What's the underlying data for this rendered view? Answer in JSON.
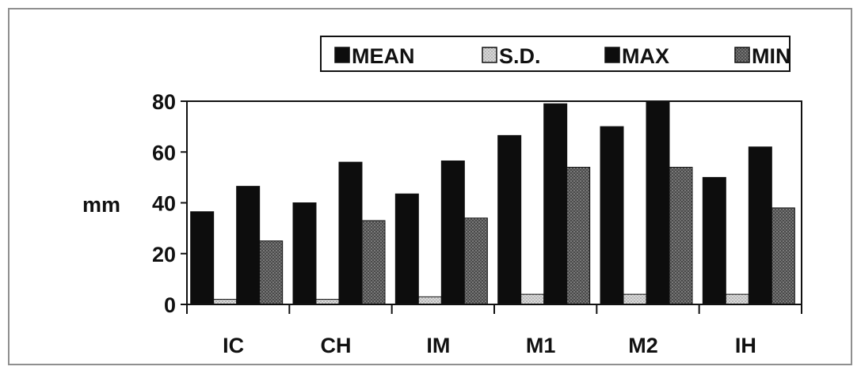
{
  "chart_data": {
    "type": "bar",
    "title": "",
    "xlabel": "",
    "ylabel": "mm",
    "ylim": [
      0,
      80
    ],
    "yticks": [
      0,
      20,
      40,
      60,
      80
    ],
    "grid": false,
    "legend_position": "top-right",
    "categories": [
      "IC",
      "CH",
      "IM",
      "M1",
      "M2",
      "IH"
    ],
    "series": [
      {
        "name": "MEAN",
        "values": [
          36.5,
          40,
          43.5,
          66.5,
          70,
          50
        ],
        "color": "#0d0d0d",
        "pattern": "solid"
      },
      {
        "name": "S.D.",
        "values": [
          2,
          2,
          3,
          4,
          4,
          4
        ],
        "color": "#cfcfcf",
        "pattern": "dots-light"
      },
      {
        "name": "MAX",
        "values": [
          46.5,
          56,
          56.5,
          79,
          80,
          62
        ],
        "color": "#0d0d0d",
        "pattern": "solid"
      },
      {
        "name": "MIN",
        "values": [
          25,
          33,
          34,
          54,
          54,
          38
        ],
        "color": "#555555",
        "pattern": "dots-dark"
      }
    ]
  }
}
